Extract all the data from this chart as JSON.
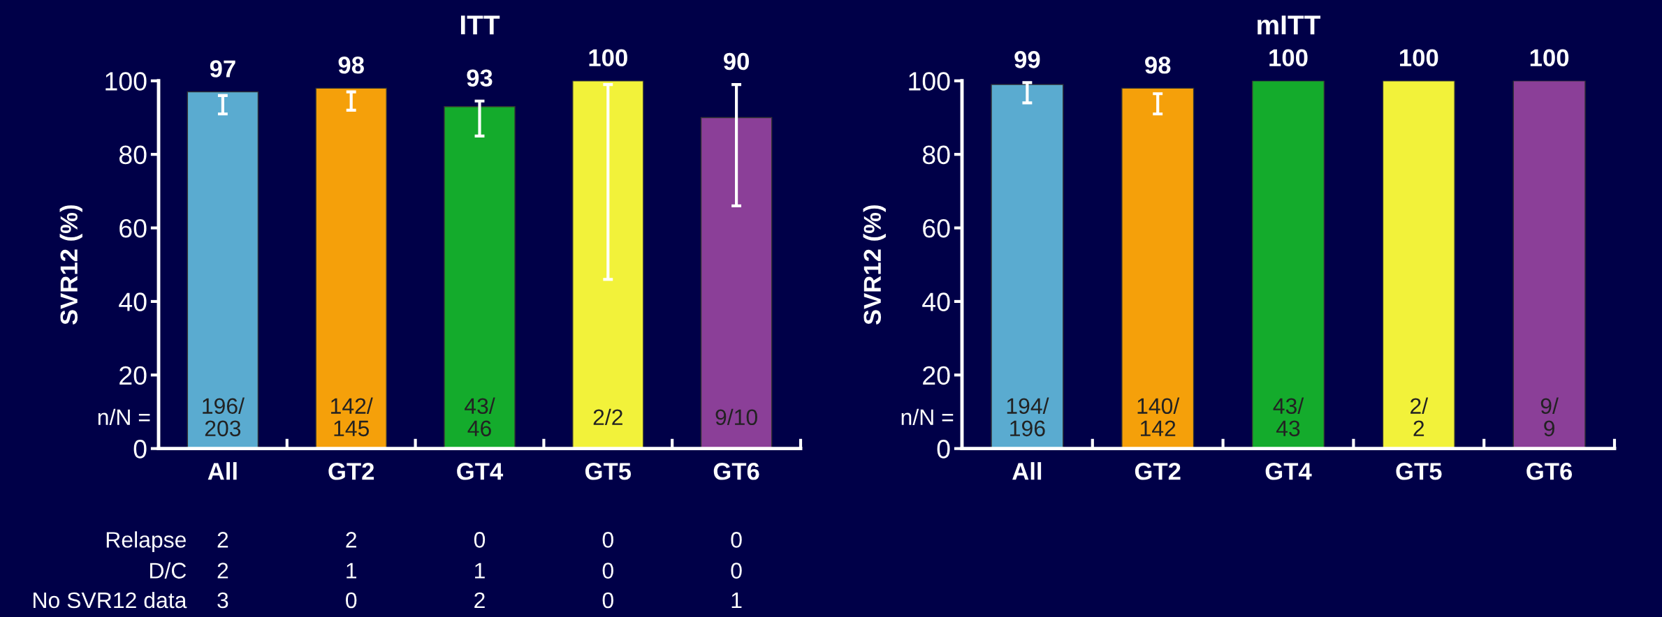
{
  "chart_data": [
    {
      "type": "bar",
      "title": "ITT",
      "ylabel": "SVR12 (%)",
      "categories": [
        "All",
        "GT2",
        "GT4",
        "GT5",
        "GT6"
      ],
      "values": [
        97,
        98,
        93,
        100,
        90
      ],
      "colors": [
        "#5aabd0",
        "#f5a00a",
        "#14ab2c",
        "#f2f23a",
        "#8b3f98"
      ],
      "errors": [
        [
          91,
          96
        ],
        [
          92,
          97
        ],
        [
          85,
          94.5
        ],
        [
          46,
          99
        ],
        [
          66,
          99
        ]
      ],
      "data_labels": true,
      "ylim": [
        0,
        100
      ],
      "yticks": [
        0,
        20,
        40,
        60,
        80,
        100
      ],
      "grid": false,
      "legend": false,
      "annotations": [
        "n/N =",
        "196/\n203",
        "142/\n145",
        "43/\n46",
        "2/2",
        "9/10",
        "Relapse",
        "2",
        "2",
        "0",
        "0",
        "0",
        "D/C",
        "2",
        "1",
        "1",
        "0",
        "0",
        "No SVR12 data",
        "3",
        "0",
        "2",
        "0",
        "1"
      ]
    },
    {
      "type": "bar",
      "title": "mITT",
      "ylabel": "SVR12 (%)",
      "categories": [
        "All",
        "GT2",
        "GT4",
        "GT5",
        "GT6"
      ],
      "values": [
        99,
        98,
        100,
        100,
        100
      ],
      "colors": [
        "#5aabd0",
        "#f5a00a",
        "#14ab2c",
        "#f2f23a",
        "#8b3f98"
      ],
      "errors": [
        [
          94,
          99.5
        ],
        [
          91,
          96.5
        ],
        null,
        null,
        null
      ],
      "data_labels": true,
      "ylim": [
        0,
        100
      ],
      "yticks": [
        0,
        20,
        40,
        60,
        80,
        100
      ],
      "grid": false,
      "legend": false,
      "annotations": [
        "n/N =",
        "194/\n196",
        "140/\n142",
        "43/\n43",
        "2/\n2",
        "9/\n9"
      ]
    }
  ]
}
